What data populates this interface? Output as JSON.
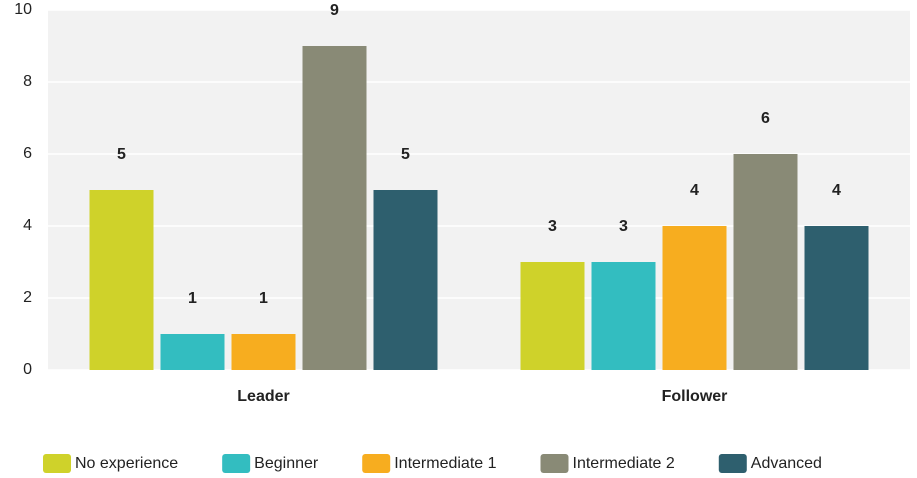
{
  "chart_data": {
    "type": "bar",
    "categories": [
      "Leader",
      "Follower"
    ],
    "series": [
      {
        "name": "No experience",
        "color": "#cfd22a",
        "values": [
          5,
          3
        ]
      },
      {
        "name": "Beginner",
        "color": "#33bdc0",
        "values": [
          1,
          3
        ]
      },
      {
        "name": "Intermediate 1",
        "color": "#f7ad1f",
        "values": [
          1,
          4
        ]
      },
      {
        "name": "Intermediate 2",
        "color": "#898a76",
        "values": [
          9,
          6
        ]
      },
      {
        "name": "Advanced",
        "color": "#2e5f6e",
        "values": [
          5,
          4
        ]
      }
    ],
    "ylim": [
      0,
      10
    ],
    "yticks": [
      0,
      2,
      4,
      6,
      8,
      10
    ],
    "grid": true,
    "legend": "bottom"
  }
}
